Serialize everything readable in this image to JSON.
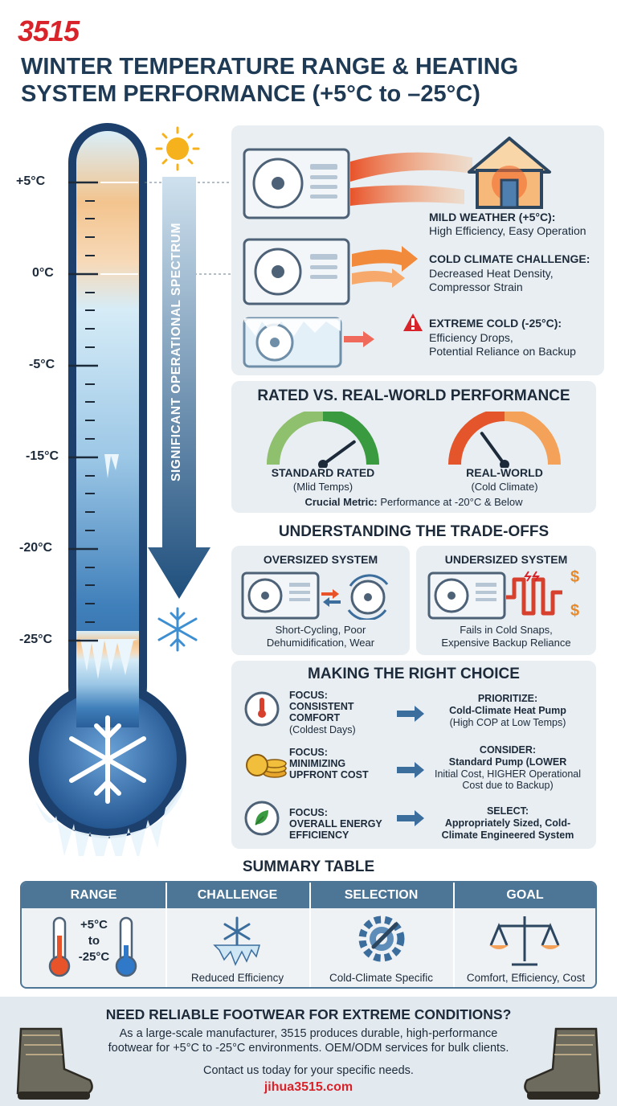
{
  "brand": {
    "logo": "3515",
    "accent": "#d8232a"
  },
  "title": "WINTER TEMPERATURE RANGE & HEATING SYSTEM PERFORMANCE (+5°C to –25°C)",
  "thermometer": {
    "labels": [
      "+5°C",
      "0°C",
      "-5°C",
      "-15°C",
      "-20°C",
      "-25°C"
    ],
    "arrow_label": "SIGNIFICANT OPERATIONAL SPECTRUM",
    "icons": [
      "sun-icon",
      "snowflake-icon"
    ]
  },
  "scenarios": [
    {
      "title": "MILD WEATHER (+5°C):",
      "lines": [
        "High Efficiency, Easy Operation"
      ]
    },
    {
      "title": "COLD CLIMATE CHALLENGE:",
      "lines": [
        "Decreased Heat Density,",
        "Compressor Strain"
      ]
    },
    {
      "title": "EXTREME COLD (-25°C):",
      "lines": [
        "Efficiency Drops,",
        "Potential Reliance on Backup"
      ]
    }
  ],
  "rated": {
    "heading": "RATED VS. REAL-WORLD PERFORMANCE",
    "gauges": [
      {
        "title": "STANDARD RATED",
        "sub": "(Mlid Temps)",
        "level": 0.8
      },
      {
        "title": "REAL-WORLD",
        "sub": "(Cold Climate)",
        "level": 0.3
      }
    ],
    "metric_label": "Crucial Metric:",
    "metric_text": " Performance at -20°C & Below"
  },
  "tradeoffs": {
    "heading": "UNDERSTANDING THE TRADE-OFFS",
    "oversized": {
      "title": "OVERSIZED SYSTEM",
      "lines": [
        "Short-Cycling, Poor",
        "Dehumidification, Wear"
      ]
    },
    "undersized": {
      "title": "UNDERSIZED SYSTEM",
      "lines": [
        "Fails in Cold Snaps,",
        "Expensive Backup Reliance"
      ],
      "symbols": [
        "$",
        "$"
      ]
    }
  },
  "choice": {
    "heading": "MAKING THE RIGHT CHOICE",
    "rows": [
      {
        "focus": [
          "FOCUS:",
          "CONSISTENT",
          "COMFORT"
        ],
        "focus_sub": "(Coldest Days)",
        "action": "PRIORITIZE:",
        "detail_bold": [
          "Cold-Climate Heat Pump"
        ],
        "detail": [
          "(High COP at Low Temps)"
        ]
      },
      {
        "focus": [
          "FOCUS:",
          "MINIMIZING",
          "UPFRONT COST"
        ],
        "focus_sub": "",
        "action": "CONSIDER:",
        "detail_bold": [
          "Standard Pump (LOWER"
        ],
        "detail": [
          "Initial Cost, HIGHER Operational",
          "Cost due to Backup)"
        ]
      },
      {
        "focus": [
          "FOCUS:",
          "OVERALL ENERGY",
          "EFFICIENCY"
        ],
        "focus_sub": "",
        "action": "SELECT:",
        "detail_bold": [
          "Appropriately Sized, Cold-",
          "Climate Engineered System"
        ],
        "detail": []
      }
    ]
  },
  "summary": {
    "heading": "SUMMARY TABLE",
    "columns": [
      "RANGE",
      "CHALLENGE",
      "SELECTION",
      "GOAL"
    ],
    "range_text": [
      "+5°C",
      "to",
      "-25°C"
    ],
    "cells": [
      "Reduced Efficiency",
      "Cold-Climate Specific",
      "Comfort, Efficiency, Cost"
    ],
    "header_color": "#4d7596"
  },
  "footer": {
    "heading": "NEED RELIABLE FOOTWEAR FOR EXTREME CONDITIONS?",
    "body": [
      "As a large-scale manufacturer, 3515 produces durable, high-performance",
      "footwear for +5°C to -25°C environments. OEM/ODM services for bulk clients."
    ],
    "contact": "Contact us today for your specific needs.",
    "url": "jihua3515.com"
  }
}
